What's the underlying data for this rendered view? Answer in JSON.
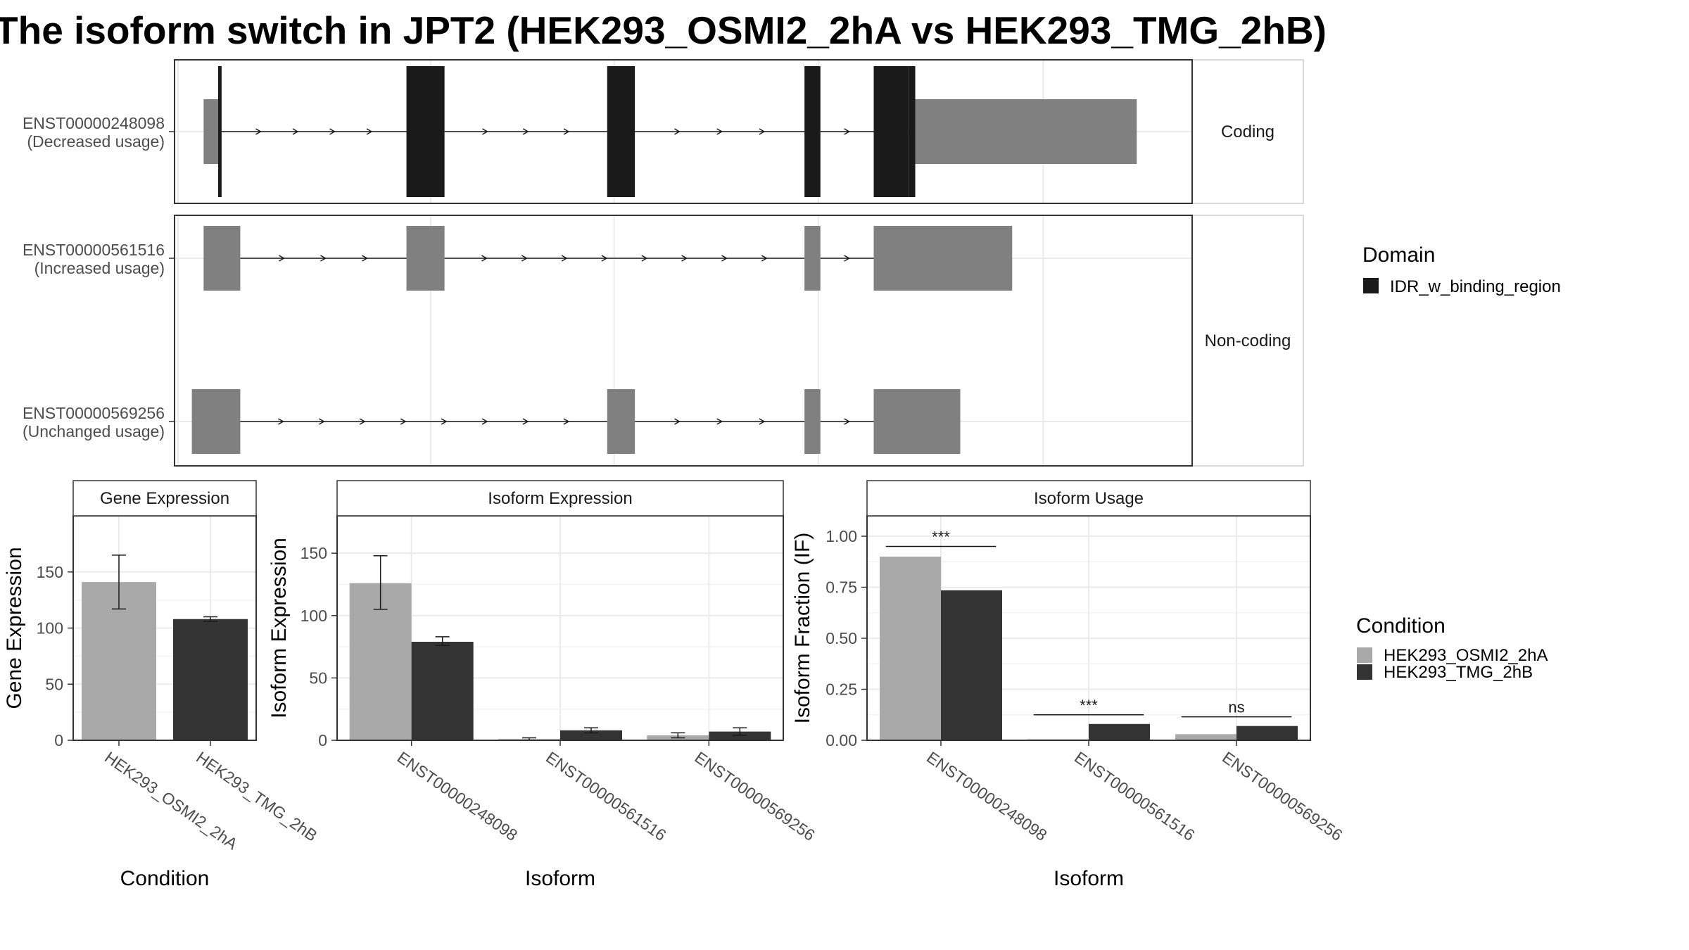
{
  "title": "The isoform switch in JPT2 (HEK293_OSMI2_2hA vs HEK293_TMG_2hB)",
  "colors": {
    "domain": "#1a1a1a",
    "exon": "#808080",
    "condition_a": "#a9a9a9",
    "condition_b": "#333333",
    "grid": "#ebebeb",
    "panel_border": "#333333",
    "strip_fill": "#ffffff"
  },
  "chart_data": [
    {
      "type": "gene-structure",
      "facets": [
        "Coding",
        "Non-coding"
      ],
      "transcripts": [
        {
          "id": "ENST00000248098",
          "usage": "(Decreased usage)",
          "facet": "Coding",
          "exons": [
            [
              0.07,
              0.28,
              "utr"
            ],
            [
              0.28,
              0.33,
              "cds"
            ],
            [
              3.0,
              3.55,
              "cds"
            ],
            [
              5.9,
              6.3,
              "cds"
            ],
            [
              8.75,
              8.98,
              "cds"
            ],
            [
              9.75,
              10.25,
              "cds"
            ],
            [
              10.25,
              10.35,
              "cds"
            ],
            [
              10.35,
              13.55,
              "utr"
            ]
          ]
        },
        {
          "id": "ENST00000561516",
          "usage": "(Increased usage)",
          "facet": "Non-coding",
          "exons": [
            [
              0.07,
              0.6,
              "nc"
            ],
            [
              3.0,
              3.55,
              "nc"
            ],
            [
              8.75,
              8.98,
              "nc"
            ],
            [
              9.75,
              11.75,
              "nc"
            ]
          ]
        },
        {
          "id": "ENST00000569256",
          "usage": "(Unchanged usage)",
          "facet": "Non-coding",
          "exons": [
            [
              -0.1,
              0.6,
              "nc"
            ],
            [
              5.9,
              6.3,
              "nc"
            ],
            [
              8.75,
              8.98,
              "nc"
            ],
            [
              9.75,
              11.0,
              "nc"
            ]
          ]
        }
      ],
      "legend": {
        "title": "Domain",
        "entries": [
          "IDR_w_binding_region"
        ]
      }
    },
    {
      "type": "bar",
      "strip": "Gene Expression",
      "xlabel": "Condition",
      "ylabel": "Gene Expression",
      "categories": [
        "HEK293_OSMI2_2hA",
        "HEK293_TMG_2hB"
      ],
      "values": [
        141,
        108
      ],
      "errors": [
        [
          117,
          165
        ],
        [
          106,
          110
        ]
      ],
      "ylim": [
        0,
        200
      ],
      "yticks": [
        0,
        50,
        100,
        150
      ],
      "ytick_labels": [
        "0",
        "50",
        "100",
        "150"
      ]
    },
    {
      "type": "bar",
      "strip": "Isoform Expression",
      "xlabel": "Isoform",
      "ylabel": "Isoform Expression",
      "categories": [
        "ENST00000248098",
        "ENST00000561516",
        "ENST00000569256"
      ],
      "series": [
        {
          "name": "HEK293_OSMI2_2hA",
          "values": [
            126,
            1,
            4
          ],
          "errors": [
            [
              105,
              148
            ],
            [
              0,
              2
            ],
            [
              2,
              6
            ]
          ]
        },
        {
          "name": "HEK293_TMG_2hB",
          "values": [
            79,
            8,
            7
          ],
          "errors": [
            [
              76,
              83
            ],
            [
              6,
              10
            ],
            [
              4,
              10
            ]
          ]
        }
      ],
      "ylim": [
        0,
        180
      ],
      "yticks": [
        0,
        50,
        100,
        150
      ],
      "ytick_labels": [
        "0",
        "50",
        "100",
        "150"
      ]
    },
    {
      "type": "bar",
      "strip": "Isoform Usage",
      "xlabel": "Isoform",
      "ylabel": "Isoform Fraction (IF)",
      "categories": [
        "ENST00000248098",
        "ENST00000561516",
        "ENST00000569256"
      ],
      "series": [
        {
          "name": "HEK293_OSMI2_2hA",
          "values": [
            0.9,
            0.005,
            0.03
          ]
        },
        {
          "name": "HEK293_TMG_2hB",
          "values": [
            0.735,
            0.08,
            0.07
          ]
        }
      ],
      "significance": [
        "***",
        "***",
        "ns"
      ],
      "sig_y": [
        0.95,
        0.125,
        0.115
      ],
      "ylim": [
        0,
        1.1
      ],
      "yticks": [
        0,
        0.25,
        0.5,
        0.75,
        1.0
      ],
      "ytick_labels": [
        "0.00",
        "0.25",
        "0.50",
        "0.75",
        "1.00"
      ],
      "legend": {
        "title": "Condition",
        "entries": [
          "HEK293_OSMI2_2hA",
          "HEK293_TMG_2hB"
        ]
      }
    }
  ]
}
